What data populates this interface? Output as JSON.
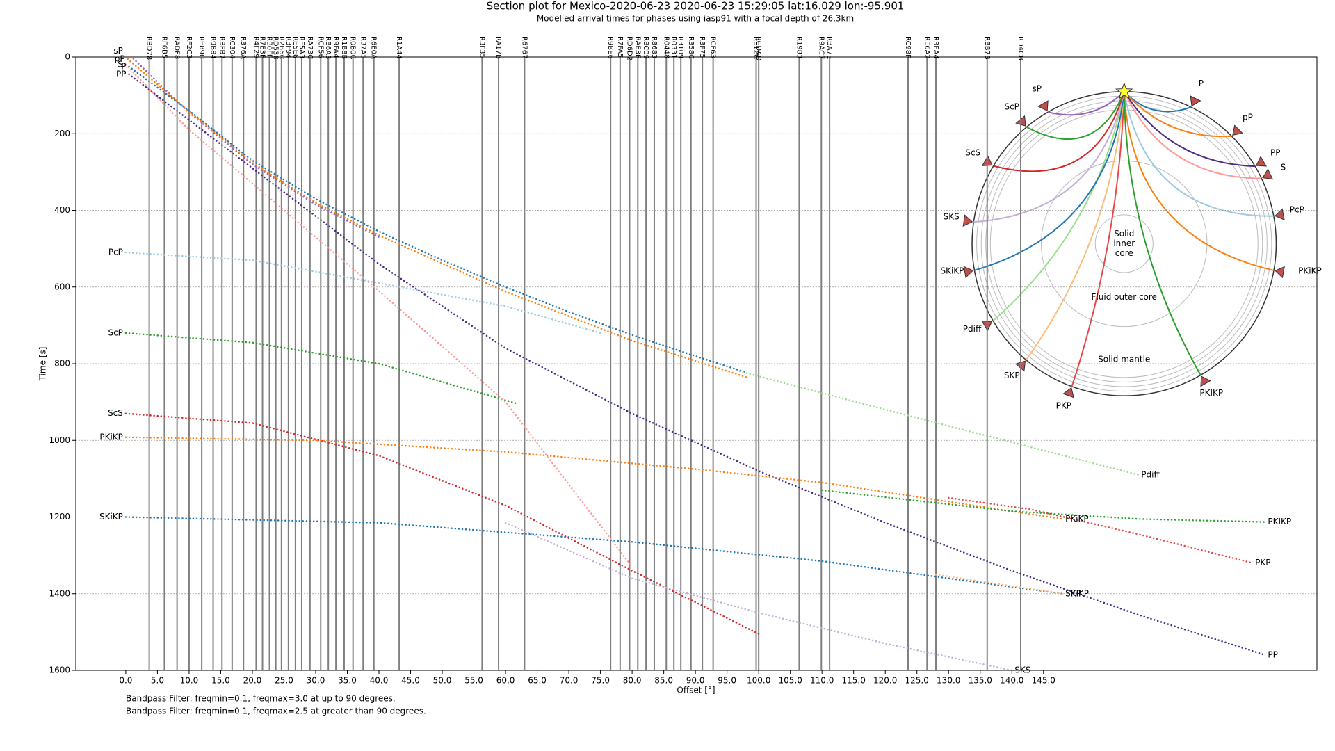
{
  "chart_data": {
    "type": "line",
    "title": "Section plot for Mexico-2020-06-23 2020-06-23 15:29:05 lat:16.029 lon:-95.901",
    "subtitle": "Modelled arrival times for phases using iasp91 with a focal depth of 26.3km",
    "x_label": "Offset [°]",
    "y_label": "Time [s]",
    "xlim": [
      -7.9,
      188.2
    ],
    "xticks": [
      {
        "value": 0,
        "label": "0.0"
      },
      {
        "value": 5,
        "label": "5.0"
      },
      {
        "value": 10,
        "label": "10.0"
      },
      {
        "value": 15,
        "label": "15.0"
      },
      {
        "value": 20,
        "label": "20.0"
      },
      {
        "value": 25,
        "label": "25.0"
      },
      {
        "value": 30,
        "label": "30.0"
      },
      {
        "value": 35,
        "label": "35.0"
      },
      {
        "value": 40,
        "label": "40.0"
      },
      {
        "value": 45,
        "label": "45.0"
      },
      {
        "value": 50,
        "label": "50.0"
      },
      {
        "value": 55,
        "label": "55.0"
      },
      {
        "value": 60,
        "label": "60.0"
      },
      {
        "value": 65,
        "label": "65.0"
      },
      {
        "value": 70,
        "label": "70.0"
      },
      {
        "value": 75,
        "label": "75.0"
      },
      {
        "value": 80,
        "label": "80.0"
      },
      {
        "value": 85,
        "label": "85.0"
      },
      {
        "value": 90,
        "label": "90.0"
      },
      {
        "value": 95,
        "label": "95.0"
      },
      {
        "value": 100,
        "label": "100.0"
      },
      {
        "value": 105,
        "label": "105.0"
      },
      {
        "value": 110,
        "label": "110.0"
      },
      {
        "value": 115,
        "label": "115.0"
      },
      {
        "value": 120,
        "label": "120.0"
      },
      {
        "value": 125,
        "label": "125.0"
      },
      {
        "value": 130,
        "label": "130.0"
      },
      {
        "value": 135,
        "label": "135.0"
      },
      {
        "value": 140,
        "label": "140.0"
      },
      {
        "value": 145,
        "label": "145.0"
      }
    ],
    "ylim": [
      0,
      1600
    ],
    "y_inverted": true,
    "yticks": [
      0,
      200,
      400,
      600,
      800,
      1000,
      1200,
      1400,
      1600
    ],
    "grid": true,
    "trace_color": "#7f7f7f",
    "stations": [
      {
        "name": "RBD78",
        "offset": 3.7,
        "color": "#000000"
      },
      {
        "name": "RF6B5",
        "offset": 6.1,
        "color": "#000000"
      },
      {
        "name": "RADF8",
        "offset": 8.1,
        "color": "#000000"
      },
      {
        "name": "RF2C3",
        "offset": 10.0,
        "color": "#000000"
      },
      {
        "name": "RE89C",
        "offset": 12.0,
        "color": "#000000"
      },
      {
        "name": "R9B84",
        "offset": 13.8,
        "color": "#000000"
      },
      {
        "name": "RBFB7",
        "offset": 15.2,
        "color": "#000000"
      },
      {
        "name": "RC304",
        "offset": 16.8,
        "color": "#000000"
      },
      {
        "name": "R376A",
        "offset": 18.6,
        "color": "#000000"
      },
      {
        "name": "R4F29",
        "offset": 20.6,
        "color": "#000000"
      },
      {
        "name": "R7E3F",
        "offset": 21.6,
        "color": "#000000"
      },
      {
        "name": "RB0FF",
        "offset": 22.7,
        "color": "#000000"
      },
      {
        "name": "RD538",
        "offset": 23.7,
        "color": "#000000"
      },
      {
        "name": "R2B6C",
        "offset": 24.6,
        "color": "#000000"
      },
      {
        "name": "R3F94",
        "offset": 25.7,
        "color": "#000000"
      },
      {
        "name": "RE5E6",
        "offset": 26.8,
        "color": "#000000"
      },
      {
        "name": "RF5A3",
        "offset": 27.8,
        "color": "#000000"
      },
      {
        "name": "RA73C",
        "offset": 29.1,
        "color": "#000000"
      },
      {
        "name": "RCF56",
        "offset": 30.8,
        "color": "#000000"
      },
      {
        "name": "RB6A3",
        "offset": 32.0,
        "color": "#000000"
      },
      {
        "name": "R9FA4",
        "offset": 33.2,
        "color": "#000000"
      },
      {
        "name": "R1B8B",
        "offset": 34.5,
        "color": "#000000"
      },
      {
        "name": "R0B0C",
        "offset": 35.9,
        "color": "#000000"
      },
      {
        "name": "R37A5",
        "offset": 37.5,
        "color": "#000000"
      },
      {
        "name": "R6E0A",
        "offset": 39.2,
        "color": "#000000"
      },
      {
        "name": "R1A44",
        "offset": 43.2,
        "color": "#000000"
      },
      {
        "name": "R3F35",
        "offset": 56.3,
        "color": "#000000"
      },
      {
        "name": "RA17B",
        "offset": 58.9,
        "color": "#000000"
      },
      {
        "name": "R6767",
        "offset": 63.0,
        "color": "#000000"
      },
      {
        "name": "R9BE6",
        "offset": 76.6,
        "color": "#000000"
      },
      {
        "name": "R7FA5",
        "offset": 78.1,
        "color": "#d62728"
      },
      {
        "name": "RD6D2",
        "offset": 79.6,
        "color": "#000000"
      },
      {
        "name": "RAE3E",
        "offset": 80.9,
        "color": "#000000"
      },
      {
        "name": "R8C09",
        "offset": 82.2,
        "color": "#000000"
      },
      {
        "name": "R8683",
        "offset": 83.5,
        "color": "#000000"
      },
      {
        "name": "R0448",
        "offset": 85.4,
        "color": "#000000"
      },
      {
        "name": "R0331",
        "offset": 86.6,
        "color": "#000000"
      },
      {
        "name": "R3109",
        "offset": 87.7,
        "color": "#000000"
      },
      {
        "name": "R358C",
        "offset": 89.3,
        "color": "#000000"
      },
      {
        "name": "R3F75",
        "offset": 91.1,
        "color": "#000000"
      },
      {
        "name": "RCF63",
        "offset": 92.8,
        "color": "#000000"
      },
      {
        "name": "RE12C",
        "offset": 99.6,
        "color": "#000000"
      },
      {
        "name": "RCDAD",
        "offset": 100.0,
        "color": "#000000"
      },
      {
        "name": "R1983",
        "offset": 106.4,
        "color": "#000000"
      },
      {
        "name": "R9AC7",
        "offset": 109.9,
        "color": "#000000"
      },
      {
        "name": "RBA7E",
        "offset": 111.2,
        "color": "#000000"
      },
      {
        "name": "RC98F",
        "offset": 123.6,
        "color": "#000000"
      },
      {
        "name": "RE6A2",
        "offset": 126.6,
        "color": "#000000"
      },
      {
        "name": "R3EA4",
        "offset": 128.0,
        "color": "#000000"
      },
      {
        "name": "RBB7B",
        "offset": 136.1,
        "color": "#000000"
      },
      {
        "name": "RD4CB",
        "offset": 141.4,
        "color": "#000000"
      }
    ],
    "series": [
      {
        "name": "sP",
        "color": "#9467bd",
        "x": [
          0,
          10,
          20,
          30,
          40
        ],
        "values": [
          -15,
          145,
          280,
          385,
          470
        ]
      },
      {
        "name": "pP",
        "color": "#ff7f0e",
        "x": [
          0.3,
          10,
          20,
          30,
          40,
          60,
          80,
          98
        ],
        "values": [
          5,
          142,
          276,
          380,
          465,
          612,
          740,
          835
        ]
      },
      {
        "name": "P",
        "color": "#1f77b4",
        "x": [
          0.5,
          10,
          20,
          30,
          40,
          50,
          60,
          70,
          80,
          90,
          98
        ],
        "values": [
          25,
          140,
          270,
          370,
          455,
          530,
          600,
          665,
          725,
          780,
          823
        ]
      },
      {
        "name": "PP",
        "color": "#4b2a8a",
        "x": [
          0.5,
          20,
          40,
          60,
          80,
          100,
          120,
          140,
          160,
          180
        ],
        "values": [
          45,
          290,
          540,
          760,
          930,
          1080,
          1215,
          1340,
          1455,
          1560
        ]
      },
      {
        "name": "PcP",
        "color": "#9ecae1",
        "x": [
          0,
          20,
          40,
          60,
          75
        ],
        "values": [
          510,
          530,
          590,
          650,
          720
        ]
      },
      {
        "name": "ScP",
        "color": "#2ca02c",
        "x": [
          0,
          20,
          40,
          62
        ],
        "values": [
          720,
          745,
          800,
          905
        ]
      },
      {
        "name": "ScS",
        "color": "#d62728",
        "x": [
          0,
          20,
          40,
          60,
          80,
          100
        ],
        "values": [
          930,
          955,
          1040,
          1170,
          1340,
          1505
        ]
      },
      {
        "name": "PKiKP",
        "color": "#ff7f0e",
        "x": [
          0,
          30,
          60,
          90,
          110,
          130,
          148
        ],
        "values": [
          992,
          1000,
          1030,
          1075,
          1110,
          1160,
          1205
        ]
      },
      {
        "name": "SKiKP",
        "color": "#1f77b4",
        "x": [
          0,
          40,
          80,
          110,
          130,
          148
        ],
        "values": [
          1200,
          1215,
          1265,
          1315,
          1360,
          1400
        ]
      },
      {
        "name": "S",
        "color": "#ff9896",
        "x": [
          0,
          10,
          20,
          40,
          60,
          80
        ],
        "values": [
          20,
          190,
          330,
          610,
          900,
          1330
        ]
      },
      {
        "name": "Pdiff",
        "color": "#98df8a",
        "x": [
          97,
          120,
          140,
          160
        ],
        "values": [
          820,
          920,
          1005,
          1090
        ]
      },
      {
        "name": "PKP",
        "color": "#e8474a",
        "x": [
          130,
          143,
          160,
          178
        ],
        "values": [
          1150,
          1180,
          1245,
          1320
        ]
      },
      {
        "name": "PKIKP",
        "color": "#2ca02c",
        "x": [
          110,
          140,
          160,
          180
        ],
        "values": [
          1130,
          1185,
          1205,
          1213
        ]
      },
      {
        "name": "SKS",
        "color": "#c5b0d5",
        "x": [
          60,
          80,
          100,
          120,
          140
        ],
        "values": [
          1215,
          1360,
          1450,
          1530,
          1600
        ]
      },
      {
        "name": "SKP",
        "color": "#ffbb78",
        "x": [
          128,
          148
        ],
        "values": [
          1350,
          1400
        ]
      }
    ],
    "inset": {
      "labels": [
        "sP",
        "P",
        "pP",
        "PP",
        "S",
        "PcP",
        "PKiKP",
        "PKIKP",
        "PKP",
        "SKP",
        "Pdiff",
        "SKiKP",
        "SKS",
        "ScS",
        "ScP"
      ],
      "inner_core": [
        "Solid",
        "inner",
        "core"
      ],
      "outer_core": "Fluid outer core",
      "mantle": "Solid mantle"
    },
    "footnotes": [
      "Bandpass Filter: freqmin=0.1, freqmax=3.0 at up to 90 degrees.",
      "Bandpass Filter: freqmin=0.1, freqmax=2.5 at greater than 90 degrees."
    ]
  }
}
